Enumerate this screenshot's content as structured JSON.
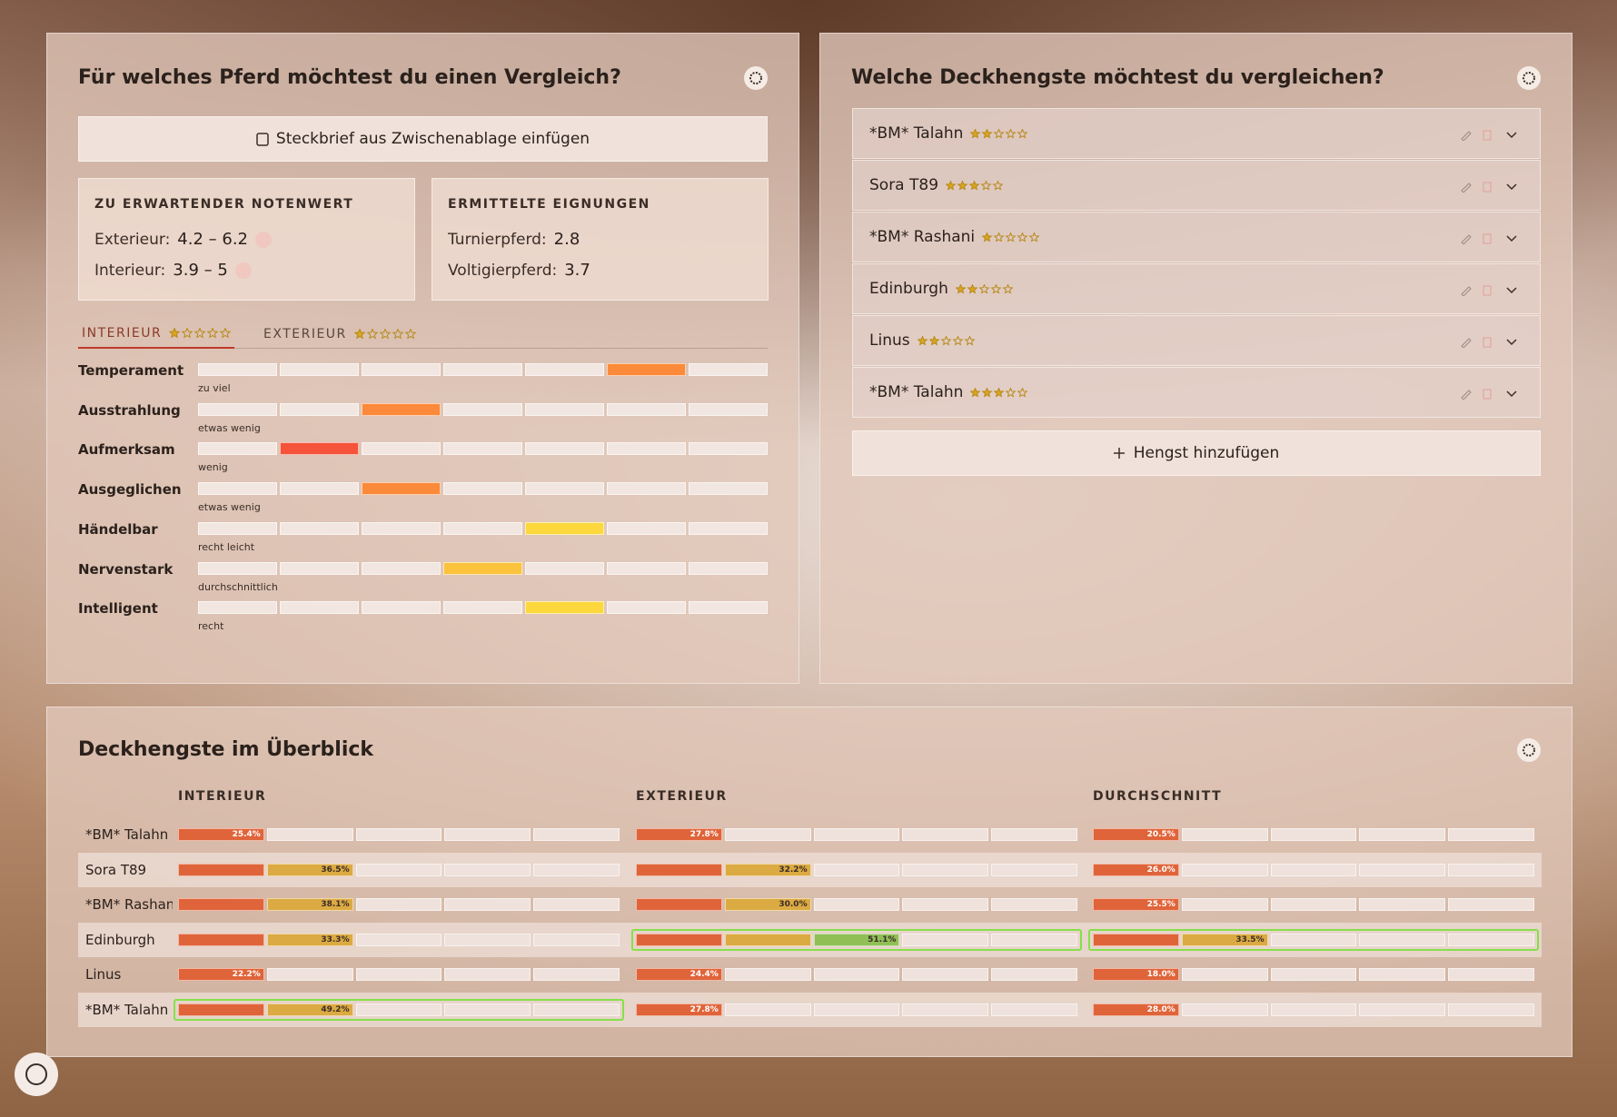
{
  "left_panel": {
    "title": "Für welches Pferd möchtest du einen Vergleich?",
    "paste_button": "Steckbrief aus Zwischenablage einfügen",
    "grade_box": {
      "heading": "ZU ERWARTENDER NOTENWERT",
      "rows": [
        {
          "label": "Exterieur:",
          "value": "4.2 – 6.2"
        },
        {
          "label": "Interieur:",
          "value": "3.9 – 5"
        }
      ]
    },
    "suitability_box": {
      "heading": "ERMITTELTE EIGNUNGEN",
      "rows": [
        {
          "label": "Turnierpferd:",
          "value": "2.8"
        },
        {
          "label": "Voltigierpferd:",
          "value": "3.7"
        }
      ]
    },
    "tabs": [
      {
        "label": "INTERIEUR",
        "stars": 1,
        "active": true
      },
      {
        "label": "EXTERIEUR",
        "stars": 1,
        "active": false
      }
    ],
    "traits": [
      {
        "name": "Temperament",
        "note": "zu viel",
        "level": 6,
        "color": "#fb8a3a"
      },
      {
        "name": "Ausstrahlung",
        "note": "etwas wenig",
        "level": 3,
        "color": "#fb8a3a"
      },
      {
        "name": "Aufmerksam",
        "note": "wenig",
        "level": 2,
        "color": "#f5533a"
      },
      {
        "name": "Ausgeglichen",
        "note": "etwas wenig",
        "level": 3,
        "color": "#fb8a3a"
      },
      {
        "name": "Händelbar",
        "note": "recht leicht",
        "level": 5,
        "color": "#fcd83c"
      },
      {
        "name": "Nervenstark",
        "note": "durchschnittlich",
        "level": 4,
        "color": "#fbc23c"
      },
      {
        "name": "Intelligent",
        "note": "recht",
        "level": 5,
        "color": "#fcd83c"
      }
    ]
  },
  "right_panel": {
    "title": "Welche Deckhengste möchtest du vergleichen?",
    "stallions": [
      {
        "name": "*BM* Talahn",
        "stars": 2
      },
      {
        "name": "Sora T89",
        "stars": 3
      },
      {
        "name": "*BM* Rashani",
        "stars": 1
      },
      {
        "name": "Edinburgh",
        "stars": 2
      },
      {
        "name": "Linus",
        "stars": 2
      },
      {
        "name": "*BM* Talahn",
        "stars": 3
      }
    ],
    "add_button": "Hengst hinzufügen"
  },
  "overview": {
    "title": "Deckhengste im Überblick",
    "columns": [
      "INTERIEUR",
      "EXTERIEUR",
      "DURCHSCHNITT"
    ],
    "segment_colors": [
      "#e0643a",
      "#dcaa42",
      "#8fbf55"
    ],
    "rows": [
      {
        "name": "*BM* Talahn",
        "cells": [
          {
            "label": "25.4%",
            "filled": 1,
            "highlight": false
          },
          {
            "label": "27.8%",
            "filled": 1,
            "highlight": false
          },
          {
            "label": "20.5%",
            "filled": 1,
            "highlight": false
          }
        ]
      },
      {
        "name": "Sora T89",
        "cells": [
          {
            "label": "36.5%",
            "filled": 2,
            "highlight": false
          },
          {
            "label": "32.2%",
            "filled": 2,
            "highlight": false
          },
          {
            "label": "26.0%",
            "filled": 1,
            "highlight": false
          }
        ]
      },
      {
        "name": "*BM* Rashani",
        "cells": [
          {
            "label": "38.1%",
            "filled": 2,
            "highlight": false
          },
          {
            "label": "30.0%",
            "filled": 2,
            "highlight": false
          },
          {
            "label": "25.5%",
            "filled": 1,
            "highlight": false
          }
        ]
      },
      {
        "name": "Edinburgh",
        "cells": [
          {
            "label": "33.3%",
            "filled": 2,
            "highlight": false
          },
          {
            "label": "51.1%",
            "filled": 3,
            "highlight": true
          },
          {
            "label": "33.5%",
            "filled": 2,
            "highlight": true
          }
        ]
      },
      {
        "name": "Linus",
        "cells": [
          {
            "label": "22.2%",
            "filled": 1,
            "highlight": false
          },
          {
            "label": "24.4%",
            "filled": 1,
            "highlight": false
          },
          {
            "label": "18.0%",
            "filled": 1,
            "highlight": false
          }
        ]
      },
      {
        "name": "*BM* Talahn",
        "cells": [
          {
            "label": "49.2%",
            "filled": 2,
            "highlight": true
          },
          {
            "label": "27.8%",
            "filled": 1,
            "highlight": false
          },
          {
            "label": "28.0%",
            "filled": 1,
            "highlight": false
          }
        ]
      }
    ]
  }
}
